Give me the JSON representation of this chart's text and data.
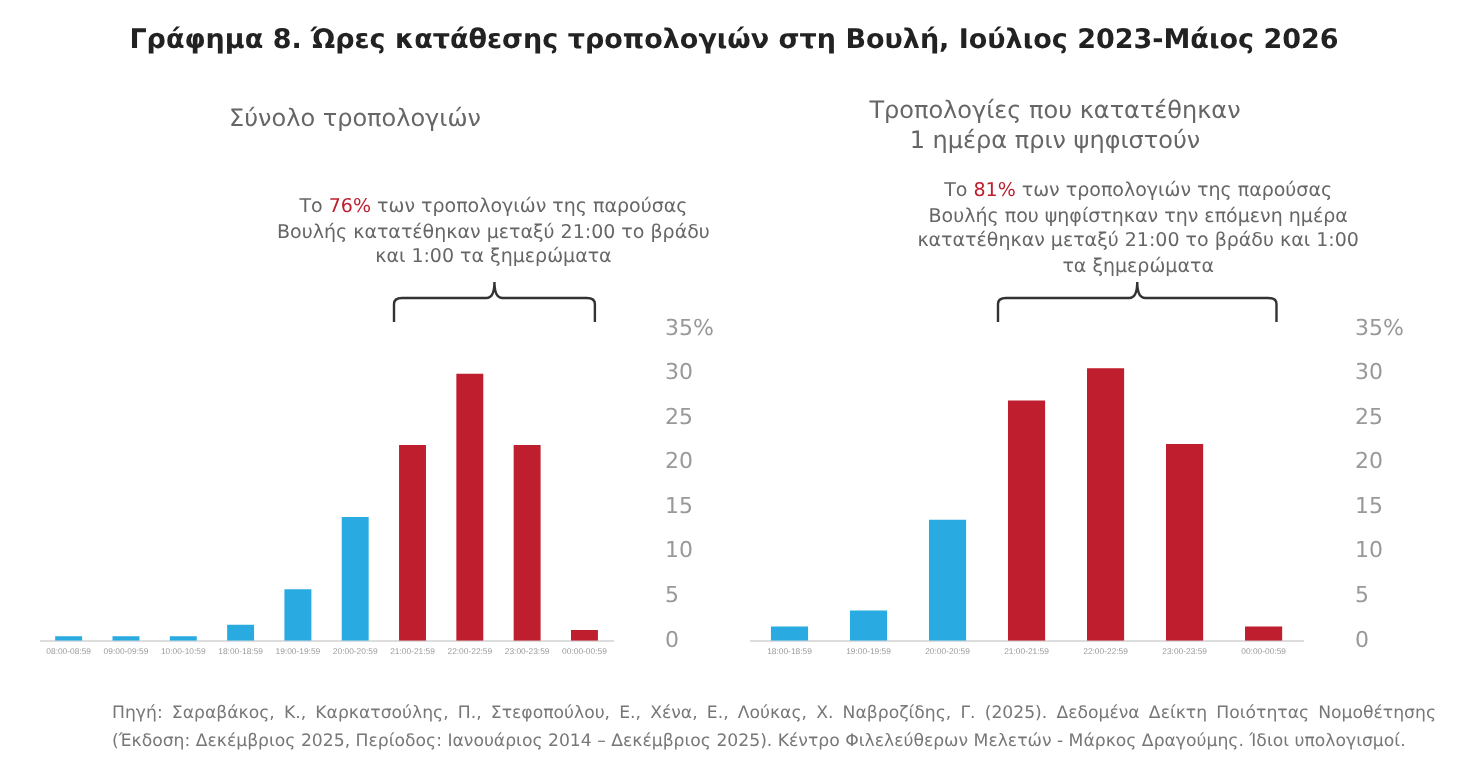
{
  "chart_data": [
    {
      "type": "bar",
      "title": "Γράφημα 8. Ώρες κατάθεσης τροπολογιών στη Βουλή, Ιούλιος 2023-Μάιος 2026",
      "subtitle": "Σύνολο τροπολογιών",
      "categories": [
        "08:00-08:59",
        "09:00-09:59",
        "10:00-10:59",
        "18:00-18:59",
        "19:00-19:59",
        "20:00-20:59",
        "21:00-21:59",
        "22:00-22:59",
        "23:00-23:59",
        "00:00-00:59"
      ],
      "values": [
        0.5,
        0.5,
        0.5,
        1.8,
        5.8,
        13.9,
        22,
        30,
        22,
        1.2
      ],
      "colors": [
        "#29abe2",
        "#29abe2",
        "#29abe2",
        "#29abe2",
        "#29abe2",
        "#29abe2",
        "#be1e2d",
        "#be1e2d",
        "#be1e2d",
        "#be1e2d"
      ],
      "ylim": [
        0,
        35
      ],
      "yticks": [
        0,
        5,
        10,
        15,
        20,
        25,
        30,
        {
          "value": 35,
          "label": "35%"
        }
      ],
      "grid": false,
      "legend": false,
      "annotations": [
        "Το 76% των τροπολογιών της παρούσας Βουλής κατατέθηκαν μεταξύ 21:00 το βράδυ και 1:00 τα ξημερώματα"
      ]
    },
    {
      "type": "bar",
      "subtitle": "Τροπολογίες που κατατέθηκαν\n1 ημέρα πριν ψηφιστούν",
      "categories": [
        "18:00-18:59",
        "19:00-19:59",
        "20:00-20:59",
        "21:00-21:59",
        "22:00-22:59",
        "23:00-23:59",
        "00:00-00:59"
      ],
      "values": [
        1.6,
        3.4,
        13.6,
        27,
        30.6,
        22.1,
        1.6
      ],
      "colors": [
        "#29abe2",
        "#29abe2",
        "#29abe2",
        "#be1e2d",
        "#be1e2d",
        "#be1e2d",
        "#be1e2d"
      ],
      "ylim": [
        0,
        35
      ],
      "yticks": [
        0,
        5,
        10,
        15,
        20,
        25,
        30,
        {
          "value": 35,
          "label": "35%"
        }
      ],
      "grid": false,
      "legend": false,
      "annotations": [
        "Το 81% των τροπολογιών της παρούσας Βουλής που ψηφίστηκαν την επόμενη ημέρα κατατέθηκαν μεταξύ 21:00 το βράδυ και 1:00 τα ξημερώματα",
        "Πηγή: Σαραβάκος, Κ., Καρκατσούλης, Π., Στεφοπούλου, Ε., Χένα, Ε., Λούκας, Χ. Ναβροζίδης, Γ. (2025). Δεδομένα Δείκτη Ποιότητας Νομοθέτησης (Έκδοση: Δεκέμβριος 2025, Περίοδος: Ιανουάριος 2014 – Δεκέμβριος 2025). Κέντρο Φιλελεύθερων Μελετών - Μάρκος Δραγούμης. Ίδιοι υπολογισμοί."
      ]
    }
  ]
}
